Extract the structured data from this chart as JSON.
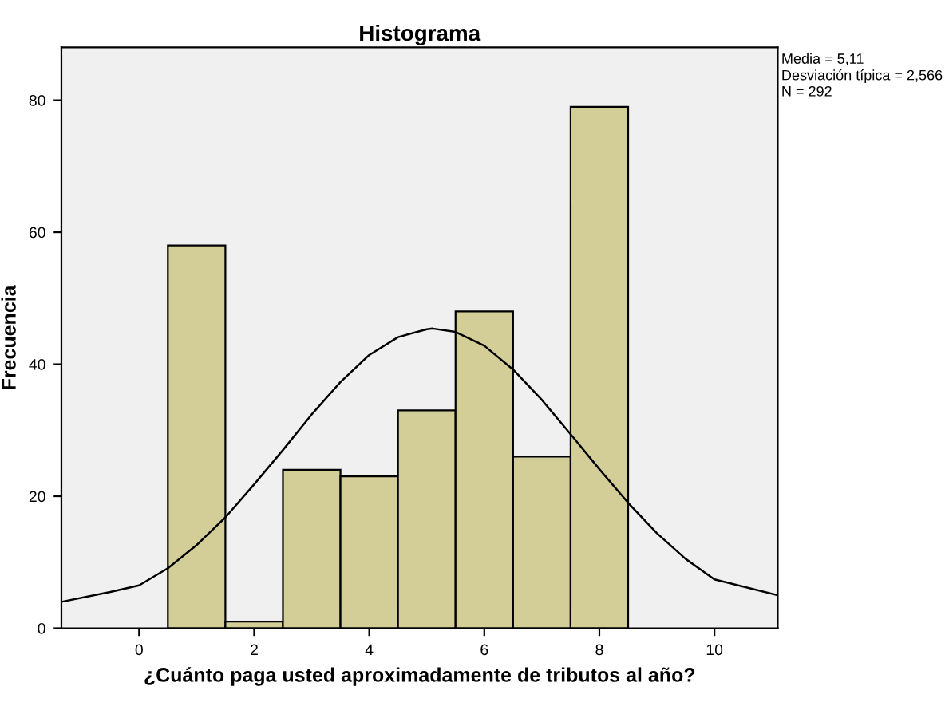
{
  "chart_data": {
    "type": "histogram",
    "title": "Histograma",
    "xlabel": "¿Cuánto paga usted aproximadamente de tributos al año?",
    "ylabel": "Frecuencia",
    "bins": [
      0.5,
      1.5,
      2.5,
      3.5,
      4.5,
      5.5,
      6.5,
      7.5,
      8.5
    ],
    "values": [
      58,
      1,
      24,
      23,
      33,
      48,
      26,
      79
    ],
    "color": "#d3ce97",
    "series": [
      {
        "type": "line",
        "color": "#000000",
        "x": [
          -1.35,
          -0.5,
          0,
          0.5,
          1,
          1.5,
          2,
          2.5,
          3,
          3.5,
          4,
          4.5,
          5,
          5.1,
          5.5,
          6,
          6.5,
          7,
          7.5,
          8,
          8.5,
          9,
          9.5,
          10,
          11.1
        ],
        "values": [
          4,
          5.5,
          6.5,
          9.1,
          12.6,
          16.8,
          21.8,
          27.0,
          32.4,
          37.3,
          41.4,
          44.1,
          45.3,
          45.4,
          44.9,
          42.8,
          39.2,
          34.6,
          29.4,
          24.1,
          19.0,
          14.4,
          10.5,
          7.4,
          5
        ]
      }
    ],
    "xlim": [
      -1.35,
      11.1
    ],
    "ylim": [
      0,
      88
    ],
    "xticks": [
      0,
      2,
      4,
      6,
      8,
      10
    ],
    "yticks": [
      0,
      20,
      40,
      60,
      80
    ],
    "grid": false,
    "annotations": [
      "Media = 5,11",
      "Desviación típica = 2,566",
      "N = 292"
    ]
  }
}
